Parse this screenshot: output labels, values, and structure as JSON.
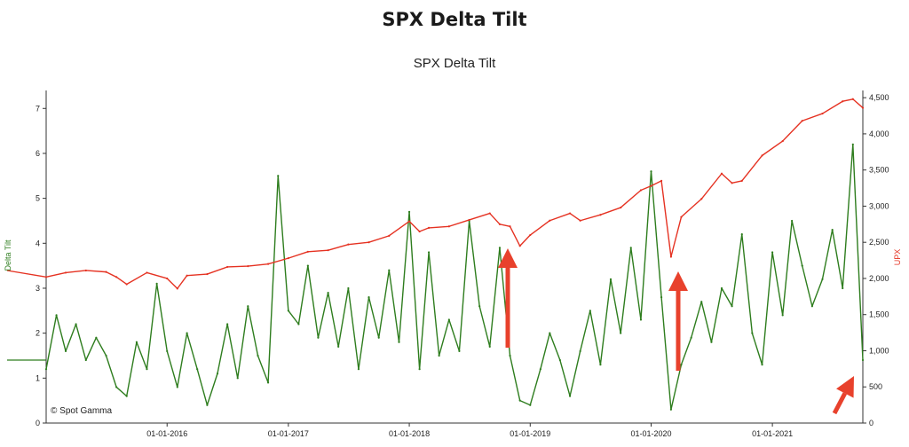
{
  "page_title": "SPX Delta Tilt",
  "chart_data": {
    "type": "line",
    "title": "SPX Delta Tilt",
    "watermark": "© Spot Gamma",
    "y_left_label": "Delta Tilt",
    "y_right_label": "UPX",
    "y_left_lim": [
      0,
      7.4
    ],
    "y_right_lim": [
      0,
      4600
    ],
    "x_range": [
      "2015-01-01",
      "2021-10-01"
    ],
    "x_tick_labels": [
      "01-01-2016",
      "01-01-2017",
      "01-01-2018",
      "01-01-2019",
      "01-01-2020",
      "01-01-2021"
    ],
    "y_left_ticks": [
      "0",
      "1",
      "2",
      "3",
      "4",
      "5",
      "6",
      "7"
    ],
    "y_right_ticks": [
      "0",
      "500",
      "1,000",
      "1,500",
      "2,000",
      "2,500",
      "3,000",
      "3,500",
      "4,000",
      "4,500"
    ],
    "colors": {
      "delta_tilt": "#2e7d1e",
      "upx": "#e53222",
      "arrow": "#e8412c"
    },
    "series": [
      {
        "name": "UPX",
        "axis": "right",
        "x": [
          "2015-01",
          "2015-03",
          "2015-05",
          "2015-07",
          "2015-08",
          "2015-09",
          "2015-11",
          "2016-01",
          "2016-02",
          "2016-03",
          "2016-05",
          "2016-07",
          "2016-09",
          "2016-11",
          "2017-01",
          "2017-03",
          "2017-05",
          "2017-07",
          "2017-09",
          "2017-11",
          "2018-01",
          "2018-02",
          "2018-03",
          "2018-05",
          "2018-07",
          "2018-09",
          "2018-10",
          "2018-11",
          "2018-12",
          "2019-01",
          "2019-03",
          "2019-05",
          "2019-06",
          "2019-08",
          "2019-10",
          "2019-12",
          "2020-01",
          "2020-02",
          "2020-03",
          "2020-04",
          "2020-06",
          "2020-08",
          "2020-09",
          "2020-10",
          "2020-12",
          "2021-02",
          "2021-04",
          "2021-06",
          "2021-08",
          "2021-09",
          "2021-10"
        ],
        "values": [
          2020,
          2080,
          2110,
          2090,
          2020,
          1920,
          2080,
          2000,
          1860,
          2040,
          2060,
          2160,
          2170,
          2200,
          2280,
          2370,
          2390,
          2470,
          2500,
          2590,
          2790,
          2650,
          2700,
          2720,
          2810,
          2900,
          2750,
          2720,
          2450,
          2600,
          2800,
          2900,
          2800,
          2880,
          2980,
          3220,
          3280,
          3350,
          2300,
          2850,
          3100,
          3450,
          3320,
          3350,
          3700,
          3900,
          4180,
          4280,
          4450,
          4480,
          4360
        ]
      },
      {
        "name": "Delta Tilt",
        "axis": "left",
        "x": [
          "2015-01",
          "2015-02",
          "2015-03",
          "2015-04",
          "2015-05",
          "2015-06",
          "2015-07",
          "2015-08",
          "2015-09",
          "2015-10",
          "2015-11",
          "2015-12",
          "2016-01",
          "2016-02",
          "2016-03",
          "2016-04",
          "2016-05",
          "2016-06",
          "2016-07",
          "2016-08",
          "2016-09",
          "2016-10",
          "2016-11",
          "2016-12",
          "2017-01",
          "2017-02",
          "2017-03",
          "2017-04",
          "2017-05",
          "2017-06",
          "2017-07",
          "2017-08",
          "2017-09",
          "2017-10",
          "2017-11",
          "2017-12",
          "2018-01",
          "2018-02",
          "2018-03",
          "2018-04",
          "2018-05",
          "2018-06",
          "2018-07",
          "2018-08",
          "2018-09",
          "2018-10",
          "2018-11",
          "2018-12",
          "2019-01",
          "2019-02",
          "2019-03",
          "2019-04",
          "2019-05",
          "2019-06",
          "2019-07",
          "2019-08",
          "2019-09",
          "2019-10",
          "2019-11",
          "2019-12",
          "2020-01",
          "2020-02",
          "2020-03",
          "2020-04",
          "2020-05",
          "2020-06",
          "2020-07",
          "2020-08",
          "2020-09",
          "2020-10",
          "2020-11",
          "2020-12",
          "2021-01",
          "2021-02",
          "2021-03",
          "2021-04",
          "2021-05",
          "2021-06",
          "2021-07",
          "2021-08",
          "2021-09",
          "2021-10"
        ],
        "values": [
          1.2,
          2.4,
          1.6,
          2.2,
          1.4,
          1.9,
          1.5,
          0.8,
          0.6,
          1.8,
          1.2,
          3.1,
          1.6,
          0.8,
          2.0,
          1.2,
          0.4,
          1.1,
          2.2,
          1.0,
          2.6,
          1.5,
          0.9,
          5.5,
          2.5,
          2.2,
          3.5,
          1.9,
          2.9,
          1.7,
          3.0,
          1.2,
          2.8,
          1.9,
          3.4,
          1.8,
          4.7,
          1.2,
          3.8,
          1.5,
          2.3,
          1.6,
          4.5,
          2.6,
          1.7,
          3.9,
          1.5,
          0.5,
          0.4,
          1.2,
          2.0,
          1.4,
          0.6,
          1.6,
          2.5,
          1.3,
          3.2,
          2.0,
          3.9,
          2.3,
          5.6,
          2.8,
          0.3,
          1.3,
          1.9,
          2.7,
          1.8,
          3.0,
          2.6,
          4.2,
          2.0,
          1.3,
          3.8,
          2.4,
          4.5,
          3.5,
          2.6,
          3.2,
          4.3,
          3.0,
          6.2,
          1.4
        ]
      }
    ],
    "annotations": [
      "arrow",
      "arrow",
      "arrow"
    ]
  }
}
